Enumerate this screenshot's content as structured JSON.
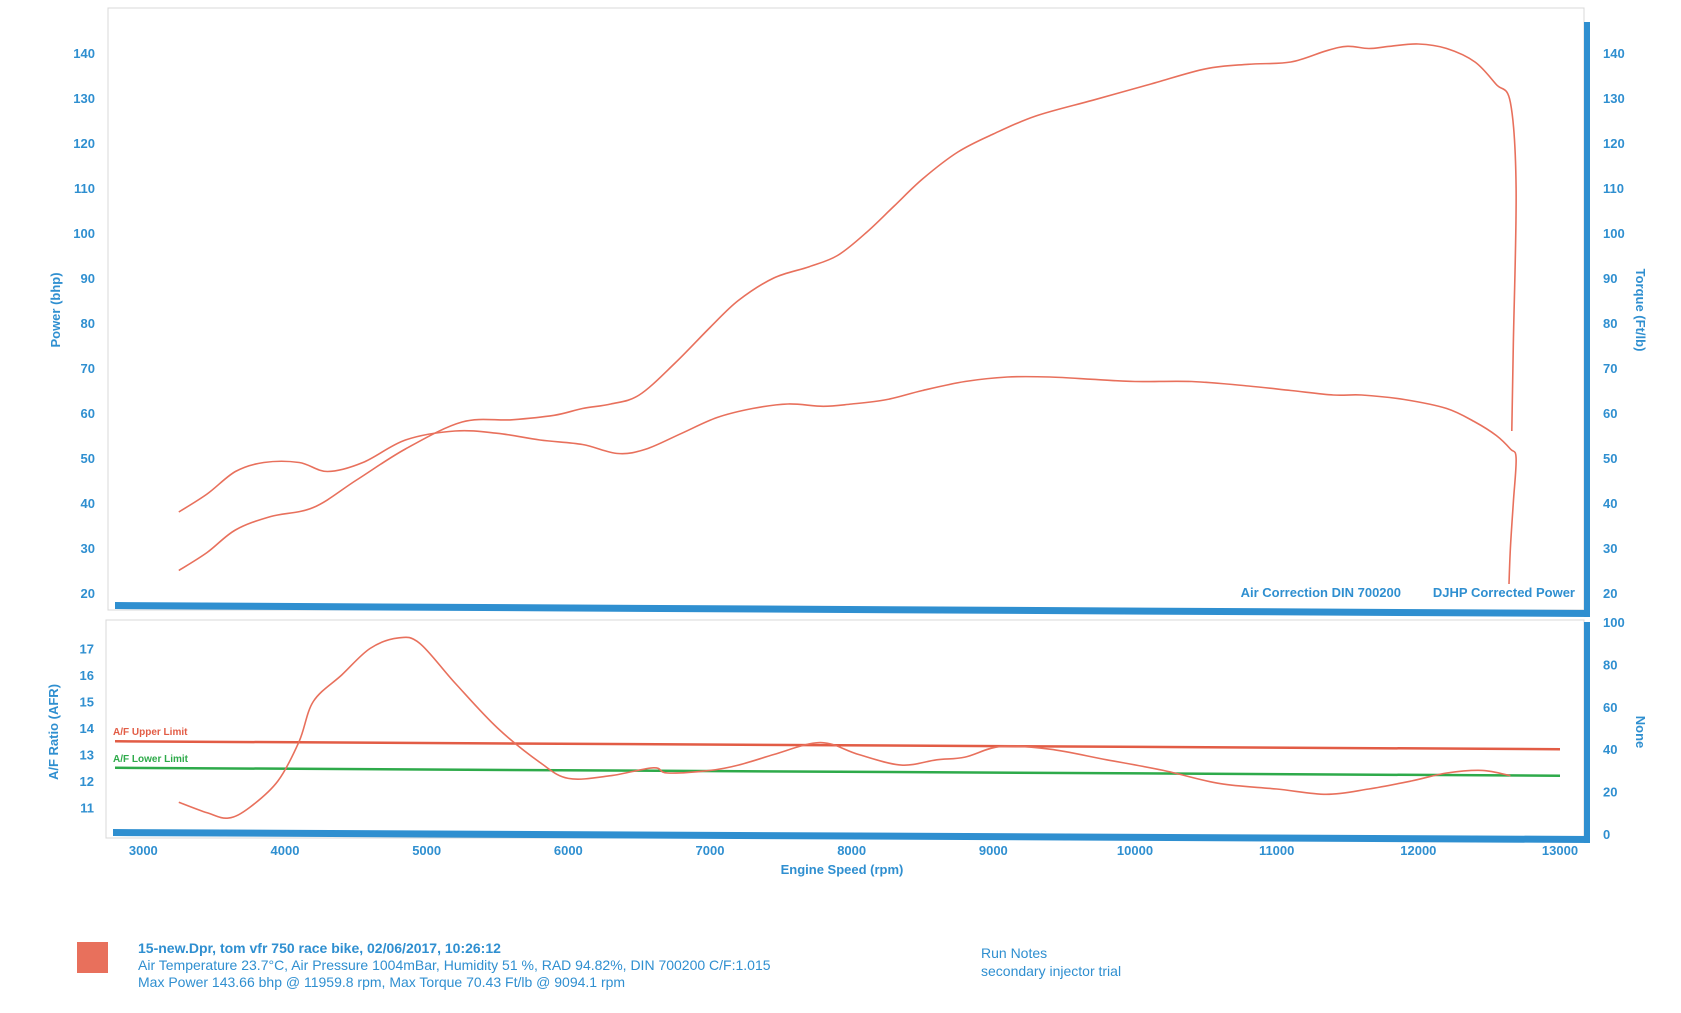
{
  "colors": {
    "axis_blue": "#2f8fd0",
    "power_line": "#e8705c",
    "torque_line": "#e8705c",
    "afr_line": "#e8705c",
    "upper_limit": "#e25c45",
    "lower_limit": "#2eaa4a",
    "run_swatch": "#e8705c"
  },
  "chart_data": [
    {
      "type": "line",
      "title": "",
      "xlabel": "Engine Speed (rpm)",
      "ylabel": "Power (bhp)",
      "y2label": "Torque (Ft/lb)",
      "xlim": [
        2800,
        13000
      ],
      "ylim": [
        18,
        150
      ],
      "y2lim": [
        18,
        150
      ],
      "y_ticks": [
        20,
        30,
        40,
        50,
        60,
        70,
        80,
        90,
        100,
        110,
        120,
        130,
        140
      ],
      "y2_ticks": [
        20,
        30,
        40,
        50,
        60,
        70,
        80,
        90,
        100,
        110,
        120,
        130,
        140
      ],
      "annotations": [
        "Air Correction DIN 700200",
        "DJHP Corrected Power"
      ],
      "grid": false,
      "series": [
        {
          "axis": "left",
          "x": [
            3250,
            3450,
            3650,
            3900,
            4200,
            4500,
            4850,
            5250,
            5600,
            5900,
            6100,
            6300,
            6500,
            6750,
            7000,
            7200,
            7450,
            7700,
            7900,
            8100,
            8300,
            8500,
            8750,
            9000,
            9300,
            9700,
            10100,
            10500,
            10800,
            11100,
            11350,
            11500,
            11650,
            11800,
            12000,
            12200,
            12400,
            12550,
            12650,
            12690,
            12670,
            12660
          ],
          "values": [
            25,
            29,
            34,
            37,
            39,
            45,
            52,
            58,
            58.5,
            59.5,
            61,
            62,
            64,
            71,
            79,
            85,
            90,
            92.5,
            95,
            100,
            106,
            112,
            118,
            122,
            126,
            129.5,
            133,
            136.5,
            137.5,
            138,
            140.5,
            141.5,
            141,
            141.5,
            142,
            141,
            138,
            133,
            129,
            110,
            75,
            56
          ]
        },
        {
          "axis": "right",
          "x": [
            3250,
            3450,
            3650,
            3850,
            4100,
            4300,
            4550,
            4850,
            5200,
            5500,
            5800,
            6100,
            6350,
            6550,
            6800,
            7050,
            7300,
            7550,
            7800,
            8000,
            8250,
            8500,
            8800,
            9100,
            9400,
            9700,
            10000,
            10400,
            10800,
            11100,
            11400,
            11600,
            11900,
            12200,
            12400,
            12550,
            12650,
            12690,
            12670,
            12650,
            12640
          ],
          "values": [
            38,
            42,
            47,
            49,
            49,
            47,
            49,
            54,
            56,
            55.5,
            54,
            53,
            51,
            52,
            55.5,
            59,
            61,
            62,
            61.5,
            62,
            63,
            65,
            67,
            68,
            68,
            67.5,
            67,
            67,
            66,
            65,
            64,
            64,
            63,
            61,
            58,
            55,
            52,
            50,
            40,
            30,
            22
          ]
        }
      ]
    },
    {
      "type": "line",
      "title": "",
      "xlabel": "Engine Speed (rpm)",
      "ylabel": "A/F Ratio (AFR)",
      "y2label": "None",
      "xlim": [
        2800,
        13000
      ],
      "ylim": [
        10,
        18
      ],
      "y2lim": [
        0,
        100
      ],
      "y_ticks": [
        11,
        12,
        13,
        14,
        15,
        16,
        17
      ],
      "y2_ticks": [
        0,
        20,
        40,
        60,
        80,
        100
      ],
      "grid": false,
      "limits": [
        {
          "name": "A/F Upper Limit",
          "x": [
            2800,
            13000
          ],
          "values": [
            13.5,
            13.2
          ]
        },
        {
          "name": "A/F Lower Limit",
          "x": [
            2800,
            13000
          ],
          "values": [
            12.5,
            12.2
          ]
        }
      ],
      "series": [
        {
          "x": [
            3250,
            3450,
            3600,
            3750,
            3950,
            4100,
            4200,
            4400,
            4600,
            4800,
            4950,
            5200,
            5500,
            5800,
            6000,
            6300,
            6600,
            6700,
            7000,
            7200,
            7450,
            7700,
            7850,
            8050,
            8350,
            8600,
            8800,
            9050,
            9400,
            9800,
            10200,
            10600,
            11000,
            11350,
            11650,
            11950,
            12200,
            12450,
            12650
          ],
          "values": [
            11.2,
            10.8,
            10.6,
            11.0,
            12.0,
            13.5,
            15.0,
            16.0,
            17.0,
            17.4,
            17.2,
            15.7,
            14.0,
            12.7,
            12.1,
            12.2,
            12.5,
            12.3,
            12.4,
            12.6,
            13.0,
            13.4,
            13.4,
            13.0,
            12.6,
            12.8,
            12.9,
            13.3,
            13.2,
            12.8,
            12.4,
            11.9,
            11.7,
            11.5,
            11.7,
            12.0,
            12.3,
            12.4,
            12.2
          ]
        }
      ]
    }
  ],
  "footer": {
    "run_line1": "15-new.Dpr,   tom vfr 750 race bike,   02/06/2017,   10:26:12",
    "run_line2": "Air Temperature 23.7°C, Air Pressure 1004mBar, Humidity 51 %, RAD 94.82%,   DIN 700200   C/F:1.015",
    "run_line3": "Max Power 143.66 bhp @ 11959.8 rpm, Max Torque 70.43 Ft/lb @ 9094.1 rpm",
    "notes_title": "Run Notes",
    "notes_text": "secondary injector trial"
  }
}
